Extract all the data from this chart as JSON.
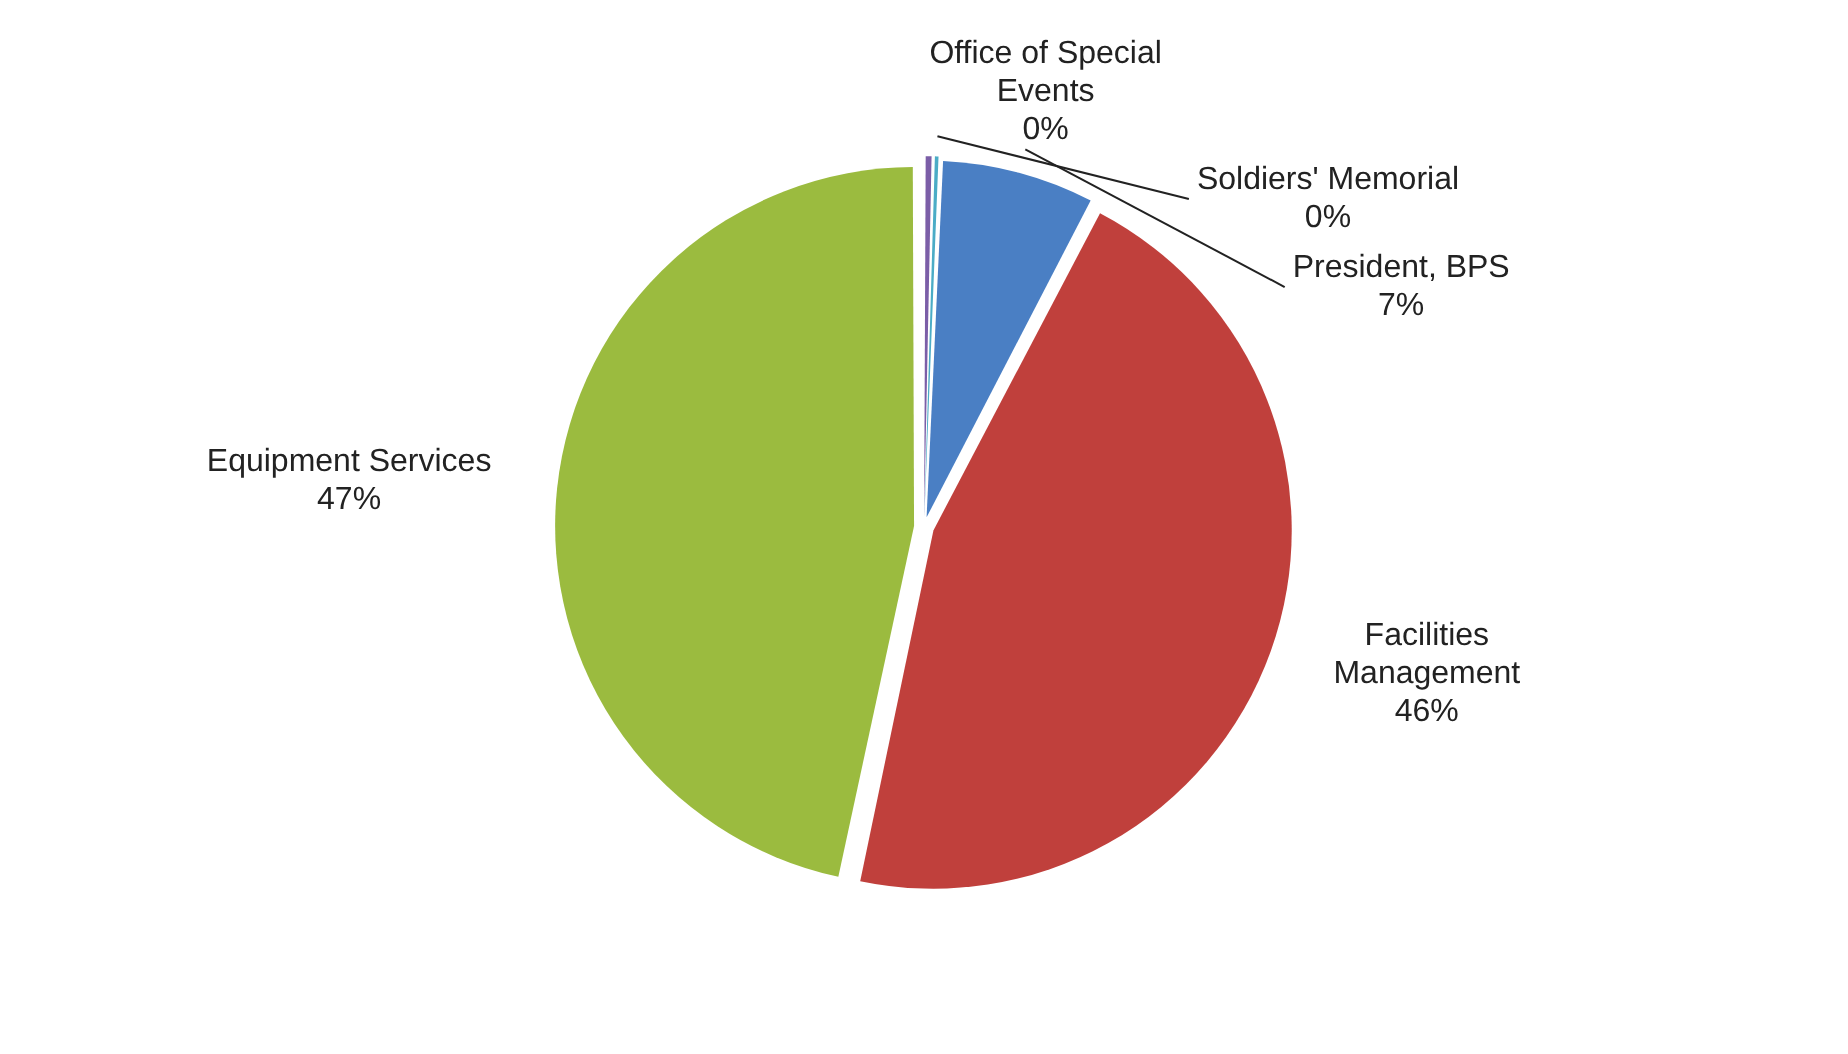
{
  "chart_data": {
    "type": "pie",
    "categories": [
      "Office of Special Events",
      "Soldiers' Memorial",
      "President, BPS",
      "Facilities Management",
      "Equipment Services"
    ],
    "values": [
      0.4,
      0.3,
      7,
      46,
      47
    ],
    "value_labels": [
      "0%",
      "0%",
      "7%",
      "46%",
      "47%"
    ],
    "colors": [
      "#7b5ea7",
      "#4bacc6",
      "#4a7fc4",
      "#c0403c",
      "#9bbb3f"
    ]
  }
}
